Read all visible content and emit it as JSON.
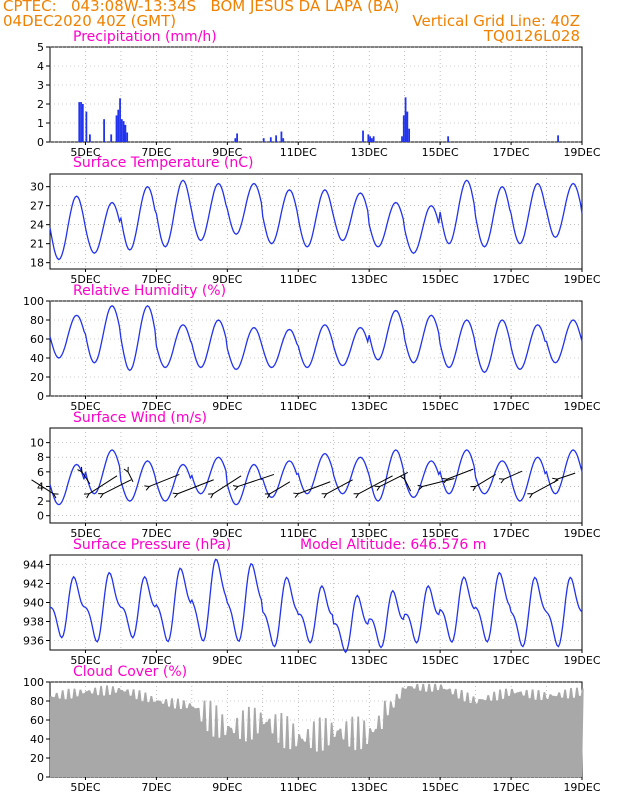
{
  "header": {
    "line1_left": "CPTEC:   043:08W-13:34S   BOM JESUS DA LAPA (BA)",
    "line2_left": "04DEC2020 40Z (GMT)",
    "line1_right": "Vertical Grid Line: 40Z",
    "line2_right": "TQ0126L028",
    "model_altitude": "Model Altitude: 646.576 m"
  },
  "colors": {
    "header": "#f08000",
    "title": "#ff00cc",
    "line": "#2233ee",
    "cloud": "#a8a8a8",
    "grid": "#999999",
    "arrow": "#000000"
  },
  "x_ticks": [
    "5DEC",
    "7DEC",
    "9DEC",
    "11DEC",
    "13DEC",
    "15DEC",
    "17DEC",
    "19DEC"
  ],
  "chart_data": [
    {
      "type": "bar",
      "title": "Precipitation (mm/h)",
      "ylim": [
        0,
        5
      ],
      "yticks": [
        0,
        1,
        2,
        3,
        4,
        5
      ],
      "x": [
        4.8,
        4.85,
        4.9,
        5.0,
        5.1,
        5.5,
        5.7,
        5.85,
        5.9,
        5.95,
        6.0,
        6.05,
        6.1,
        6.15,
        9.2,
        9.25,
        10.0,
        10.2,
        10.35,
        10.5,
        10.55,
        12.8,
        12.95,
        13.0,
        13.05,
        13.1,
        13.9,
        13.95,
        14.0,
        14.05,
        14.1,
        15.2,
        18.3
      ],
      "values": [
        2.1,
        2.1,
        2.0,
        1.6,
        0.4,
        1.2,
        0.4,
        1.4,
        1.7,
        2.3,
        1.2,
        1.1,
        0.9,
        0.5,
        0.2,
        0.45,
        0.2,
        0.25,
        0.35,
        0.55,
        0.2,
        0.6,
        0.4,
        0.3,
        0.2,
        0.3,
        0.3,
        1.4,
        2.35,
        1.6,
        0.7,
        0.3,
        0.35
      ]
    },
    {
      "type": "line",
      "title": "Surface Temperature (nC)",
      "ylim": [
        17,
        32
      ],
      "yticks": [
        18,
        21,
        24,
        27,
        30
      ],
      "daily_min": [
        18.5,
        19.5,
        20.0,
        20.5,
        21.5,
        22.5,
        21.0,
        20.5,
        21.5,
        20.5,
        19.5,
        21.0,
        20.5,
        21.0,
        22.0
      ],
      "daily_max": [
        28.5,
        27.5,
        30.0,
        31.0,
        30.5,
        30.5,
        29.5,
        29.5,
        29.0,
        27.5,
        27.0,
        31.0,
        30.0,
        30.5,
        30.5,
        29.5
      ]
    },
    {
      "type": "line",
      "title": "Relative Humidity (%)",
      "ylim": [
        0,
        100
      ],
      "yticks": [
        0,
        20,
        40,
        60,
        80,
        100
      ],
      "daily_max": [
        85,
        95,
        95,
        75,
        80,
        72,
        70,
        75,
        72,
        90,
        85,
        80,
        80,
        75,
        80
      ],
      "daily_min": [
        40,
        35,
        27,
        30,
        30,
        28,
        30,
        30,
        32,
        38,
        35,
        30,
        25,
        28,
        35
      ]
    },
    {
      "type": "line",
      "title": "Surface Wind (m/s)",
      "ylim": [
        -1,
        12
      ],
      "yticks": [
        0,
        2,
        4,
        6,
        8,
        10
      ],
      "daily_peak": [
        7,
        9,
        7.5,
        7,
        8,
        7,
        7.5,
        8.5,
        8,
        9,
        7.5,
        9,
        7.5,
        8,
        9
      ],
      "daily_trough": [
        1.5,
        3,
        2,
        2,
        3,
        1.5,
        2.5,
        3,
        3,
        2,
        2.5,
        3,
        3,
        2,
        3
      ],
      "arrows": [
        {
          "x": 4.1,
          "y": 3,
          "dx": -22,
          "dy": -14
        },
        {
          "x": 4.9,
          "y": 6,
          "dx": 8,
          "dy": 12
        },
        {
          "x": 5.1,
          "y": 3,
          "dx": 28,
          "dy": -18
        },
        {
          "x": 5.5,
          "y": 3,
          "dx": 28,
          "dy": -14
        },
        {
          "x": 6.2,
          "y": 6,
          "dx": 5,
          "dy": 10
        },
        {
          "x": 6.8,
          "y": 4,
          "dx": 30,
          "dy": -12
        },
        {
          "x": 7.6,
          "y": 3,
          "dx": 36,
          "dy": -14
        },
        {
          "x": 8.6,
          "y": 3,
          "dx": 28,
          "dy": -18
        },
        {
          "x": 9.3,
          "y": 4,
          "dx": 36,
          "dy": -12
        },
        {
          "x": 10.2,
          "y": 3,
          "dx": 20,
          "dy": -12
        },
        {
          "x": 11.0,
          "y": 3,
          "dx": 32,
          "dy": -12
        },
        {
          "x": 11.8,
          "y": 3,
          "dx": 26,
          "dy": -14
        },
        {
          "x": 12.7,
          "y": 3,
          "dx": 34,
          "dy": -18
        },
        {
          "x": 13.3,
          "y": 4,
          "dx": 28,
          "dy": -14
        },
        {
          "x": 14.0,
          "y": 5,
          "dx": 6,
          "dy": 12
        },
        {
          "x": 14.5,
          "y": 4,
          "dx": 32,
          "dy": -8
        },
        {
          "x": 15.2,
          "y": 5,
          "dx": 26,
          "dy": -10
        },
        {
          "x": 16.0,
          "y": 4,
          "dx": 20,
          "dy": -12
        },
        {
          "x": 16.8,
          "y": 5,
          "dx": 18,
          "dy": -8
        },
        {
          "x": 17.6,
          "y": 3,
          "dx": 26,
          "dy": -14
        },
        {
          "x": 18.3,
          "y": 5,
          "dx": 18,
          "dy": -6
        }
      ]
    },
    {
      "type": "line",
      "title": "Surface Pressure (hPa)",
      "ylim": [
        935,
        945
      ],
      "yticks": [
        936,
        938,
        940,
        942,
        944
      ],
      "daily_max": [
        942,
        942.5,
        942,
        943,
        944,
        943.5,
        942,
        941,
        940,
        940.5,
        941,
        942,
        942.5,
        942,
        942,
        942
      ],
      "daily_min": [
        937,
        936.5,
        937,
        936.5,
        936.5,
        936.5,
        936,
        936.5,
        935.5,
        936,
        936.5,
        936.5,
        936.5,
        936,
        936
      ]
    },
    {
      "type": "area",
      "title": "Cloud Cover (%)",
      "ylim": [
        0,
        100
      ],
      "yticks": [
        0,
        20,
        40,
        60,
        80,
        100
      ],
      "daily": [
        85,
        90,
        92,
        80,
        75,
        50,
        60,
        40,
        48,
        45,
        95,
        95,
        80,
        90,
        85,
        90
      ]
    }
  ]
}
